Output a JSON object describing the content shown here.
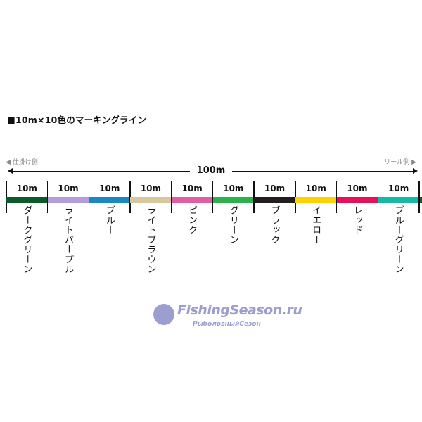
{
  "title": "■10m×10色のマーキングライン",
  "left_side_label": "◀ 仕掛け側",
  "right_side_label": "リール側 ▶",
  "total_length": "100m",
  "segments": [
    {
      "length": "10m",
      "name": "ダークグリーン",
      "color": "#0b5a2c"
    },
    {
      "length": "10m",
      "name": "ライトパープル",
      "color": "#b49ddb"
    },
    {
      "length": "10m",
      "name": "ブルー",
      "color": "#1b88c6"
    },
    {
      "length": "10m",
      "name": "ライトブラウン",
      "color": "#d6c79c"
    },
    {
      "length": "10m",
      "name": "ピンク",
      "color": "#df5fa6"
    },
    {
      "length": "10m",
      "name": "グリーン",
      "color": "#2bb24c"
    },
    {
      "length": "10m",
      "name": "ブラック",
      "color": "#231f20"
    },
    {
      "length": "10m",
      "name": "イエロー",
      "color": "#ffd100"
    },
    {
      "length": "10m",
      "name": "レッド",
      "color": "#e80f5a"
    },
    {
      "length": "10m",
      "name": "ブルーグリーン",
      "color": "#17b8a6"
    }
  ],
  "watermark": {
    "main": "FishingSeason.ru",
    "sub": "РыболовныйСезон"
  }
}
